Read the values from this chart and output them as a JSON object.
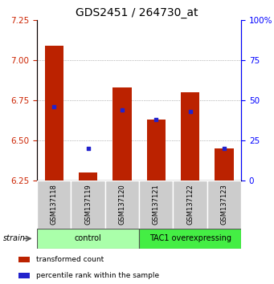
{
  "title": "GDS2451 / 264730_at",
  "samples": [
    "GSM137118",
    "GSM137119",
    "GSM137120",
    "GSM137121",
    "GSM137122",
    "GSM137123"
  ],
  "transformed_counts": [
    7.09,
    6.3,
    6.83,
    6.63,
    6.8,
    6.45
  ],
  "percentile_ranks": [
    46,
    20,
    44,
    38,
    43,
    20
  ],
  "ylim_left": [
    6.25,
    7.25
  ],
  "ylim_right": [
    0,
    100
  ],
  "yticks_left": [
    6.25,
    6.5,
    6.75,
    7.0,
    7.25
  ],
  "yticks_right": [
    0,
    25,
    50,
    75,
    100
  ],
  "bar_bottom": 6.25,
  "bar_color": "#bb2200",
  "dot_color": "#2222cc",
  "groups": [
    {
      "label": "control",
      "indices": [
        0,
        1,
        2
      ],
      "color": "#aaffaa"
    },
    {
      "label": "TAC1 overexpressing",
      "indices": [
        3,
        4,
        5
      ],
      "color": "#44ee44"
    }
  ],
  "strain_label": "strain",
  "legend_items": [
    {
      "color": "#bb2200",
      "label": "transformed count"
    },
    {
      "color": "#2222cc",
      "label": "percentile rank within the sample"
    }
  ],
  "title_fontsize": 10,
  "tick_fontsize": 7.5,
  "sample_fontsize": 6,
  "group_fontsize": 7,
  "legend_fontsize": 6.5
}
